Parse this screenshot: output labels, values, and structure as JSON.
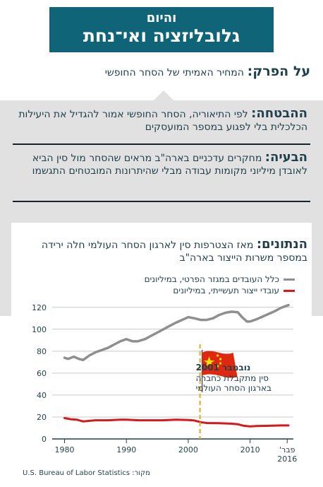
{
  "header": {
    "kicker": "והיום",
    "title": "גלובליזציה ואי־נחת"
  },
  "topic": {
    "label": "על הפרק:",
    "text": "המחיר האמיתי של הסחר החופשי"
  },
  "promise": {
    "label": "ההבטחה:",
    "text": "לפי התיאוריה, הסחר החופשי אמור להגדיל את היעילות הכלכלית בלי לפגוע במספר המועסקים"
  },
  "problem": {
    "label": "הבעיה:",
    "text": "מחקרים עדכניים בארה\"ב מראים שהסחר מול סין הביא לאובדן מיליוני מקומות עבודה מבלי שהיתרונות המובטחים התגשמו"
  },
  "data_section": {
    "label": "הנתונים:",
    "text": "מאז הצטרפות סין לארגון הסחר העולמי חלה ירידה במספר משרות הייצור בארה\"ב"
  },
  "annotation": {
    "title": "נובמבר 2001",
    "lines": [
      "סין מתקבלת כחברה",
      "בארגון הסחר העולמי"
    ]
  },
  "source": "מקור: U.S. Bureau of Labor Statistics",
  "colors": {
    "header": "#0f6577",
    "panel": "#e1e1e1",
    "retail": "#8f8f8f",
    "manufacturing": "#d7191c",
    "marker": "#e8a81c",
    "flag": "#de2910",
    "star": "#ffde00"
  },
  "chart_data": {
    "type": "line",
    "xlim": [
      1978,
      2017
    ],
    "ylim": [
      0,
      125
    ],
    "x_ticks": [
      1980,
      1990,
      2000,
      2010
    ],
    "x_tick_labels": [
      "1980",
      "1990",
      "2000",
      "2010"
    ],
    "x_last_label": [
      "פבר'",
      "2016"
    ],
    "y_ticks": [
      0,
      20,
      40,
      60,
      80,
      100,
      120
    ],
    "grid": true,
    "marker_x": 2001.9,
    "legend_placement": "top-right",
    "series": [
      {
        "name": "כלל העובדים במגזר הפרטי, במיליונים",
        "x": [
          1980,
          1980.6,
          1981.5,
          1982.3,
          1983,
          1984,
          1985,
          1986,
          1987,
          1988,
          1989,
          1990,
          1991,
          1991.8,
          1993,
          1994,
          1995,
          1996,
          1997,
          1998,
          1999,
          2000,
          2001,
          2002,
          2003,
          2004,
          2005,
          2006,
          2007,
          2008,
          2008.7,
          2009.5,
          2010,
          2011,
          2012,
          2013,
          2014,
          2015,
          2016.2
        ],
        "y": [
          74,
          73,
          75,
          73,
          72,
          76,
          79,
          81,
          83,
          86,
          89,
          91,
          89,
          89,
          91,
          94,
          97,
          100,
          103,
          106,
          108.5,
          111,
          110,
          108.5,
          108.5,
          110,
          113,
          115,
          116,
          115.5,
          111,
          107,
          107,
          109,
          111.5,
          114,
          116.5,
          119.5,
          122
        ]
      },
      {
        "name": "עובדי ייצור תעשייתי, במיליונים",
        "x": [
          1980,
          1981,
          1982,
          1983,
          1985,
          1987,
          1989,
          1990,
          1992,
          1994,
          1996,
          1998,
          2000,
          2001,
          2002,
          2003,
          2005,
          2007,
          2008,
          2009,
          2010,
          2011,
          2013,
          2015,
          2016.2
        ],
        "y": [
          19,
          18,
          17.5,
          16,
          17,
          17,
          17.5,
          17.5,
          17,
          17,
          17,
          17.5,
          17.3,
          16.8,
          15.3,
          14.5,
          14.3,
          13.9,
          13.4,
          12,
          11.5,
          11.7,
          12,
          12.3,
          12.3
        ]
      }
    ]
  }
}
